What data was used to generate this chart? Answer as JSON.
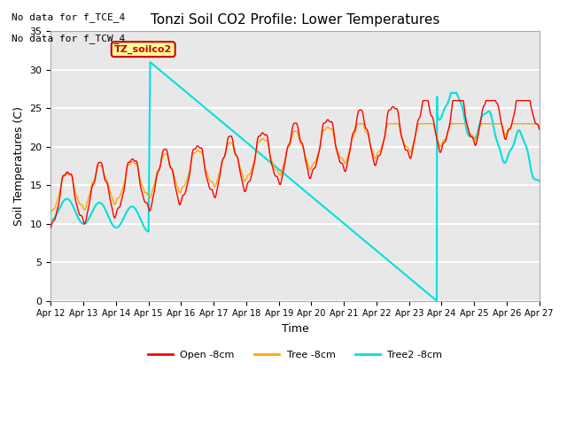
{
  "title": "Tonzi Soil CO2 Profile: Lower Temperatures",
  "ylabel": "Soil Temperatures (C)",
  "xlabel": "Time",
  "no_data_text": [
    "No data for f_TCE_4",
    "No data for f_TCW_4"
  ],
  "legend_box_text": "TZ_soilco2",
  "ylim": [
    0,
    35
  ],
  "background_color": "#e8e8e8",
  "legend_labels": [
    "Open -8cm",
    "Tree -8cm",
    "Tree2 -8cm"
  ],
  "open_color": "#ff0000",
  "tree_color": "#ffa500",
  "cyan_color": "#00e0e0",
  "xtick_labels": [
    "Apr 12",
    "Apr 13",
    "Apr 14",
    "Apr 15",
    "Apr 16",
    "Apr 17",
    "Apr 18",
    "Apr 19",
    "Apr 20",
    "Apr 21",
    "Apr 22",
    "Apr 23",
    "Apr 24",
    "Apr 25",
    "Apr 26",
    "Apr 27"
  ]
}
